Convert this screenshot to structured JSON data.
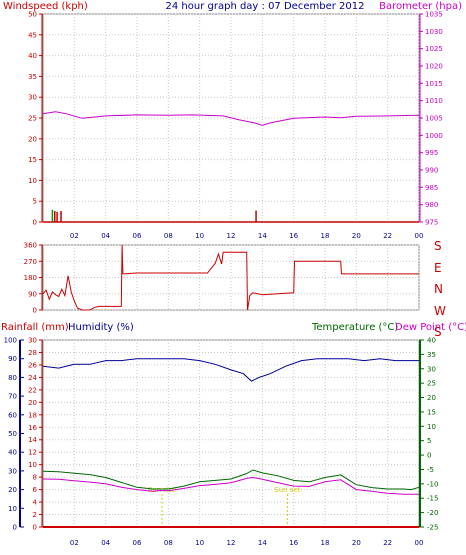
{
  "header": {
    "left_label": "Windspeed (kph)",
    "title": "24 hour graph day : 07 December 2012",
    "right_label": "Barometer (hpa)"
  },
  "compass": [
    "S",
    "E",
    "N",
    "W",
    "S"
  ],
  "lower_header": {
    "rainfall": "Rainfall (mm)",
    "humidity": "Humidity (%)",
    "temperature": "Temperature (°C)",
    "dewpoint": "Dew Point (°C)"
  },
  "annotations": {
    "sunrise": "Sun rise",
    "sunset": "Sun set"
  },
  "colors": {
    "wind": "#cc0000",
    "baro": "#cc00cc",
    "title": "#000099",
    "humidity": "#000099",
    "temp": "#006600",
    "dew": "#cc00cc",
    "rain": "#cc0000",
    "sun": "#cccc00",
    "grid": "#c8c8c8"
  },
  "chart_data": [
    {
      "type": "line",
      "title": "24 hour graph day : 07 December 2012",
      "x_ticks": [
        "02",
        "04",
        "06",
        "08",
        "10",
        "12",
        "14",
        "16",
        "18",
        "20",
        "22",
        "00"
      ],
      "xlim": [
        0,
        24
      ],
      "y_left": {
        "label": "Windspeed (kph)",
        "lim": [
          0,
          50
        ],
        "ticks": [
          0,
          5,
          10,
          15,
          20,
          25,
          30,
          35,
          40,
          45,
          50
        ]
      },
      "y_right": {
        "label": "Barometer (hpa)",
        "lim": [
          975,
          1035
        ],
        "ticks": [
          975,
          980,
          985,
          990,
          995,
          1000,
          1005,
          1010,
          1015,
          1020,
          1025,
          1030,
          1035
        ]
      },
      "series": [
        {
          "name": "Barometer (hpa)",
          "axis": "right",
          "x": [
            0,
            0.8,
            1.5,
            2.5,
            4,
            6,
            8,
            9.5,
            11.5,
            12.5,
            13.5,
            14,
            14.5,
            16,
            18,
            19,
            20,
            22,
            24
          ],
          "values": [
            1006.2,
            1006.8,
            1006.2,
            1004.9,
            1005.6,
            1005.9,
            1005.8,
            1005.9,
            1005.6,
            1004.5,
            1003.6,
            1002.9,
            1003.6,
            1004.9,
            1005.3,
            1005.1,
            1005.5,
            1005.6,
            1005.8
          ]
        },
        {
          "name": "Windspeed (kph)",
          "axis": "left",
          "x": [
            0.6,
            0.75,
            0.9,
            1.15,
            13.6
          ],
          "values": [
            1.5,
            1.2,
            1.0,
            1.2,
            1.3
          ]
        }
      ]
    },
    {
      "type": "line",
      "x_ticks": [],
      "xlim": [
        0,
        24
      ],
      "ylim": [
        0,
        360
      ],
      "y_ticks": [
        0,
        90,
        180,
        270,
        360
      ],
      "series": [
        {
          "x": [
            0,
            0.2,
            0.4,
            0.6,
            0.8,
            1.0,
            1.2,
            1.4,
            1.6,
            1.8,
            2.0,
            2.2,
            2.5,
            3.0,
            3.3,
            3.6,
            4.0,
            4.5,
            5.0,
            5.05,
            5.1,
            6.0,
            8.0,
            10.0,
            10.5,
            11.0,
            11.2,
            11.4,
            11.5,
            12.0,
            12.5,
            13.0,
            13.05,
            13.2,
            13.4,
            14.0,
            15.0,
            16.0,
            16.05,
            18.0,
            19.0,
            19.05,
            20.0,
            24.0
          ],
          "values": [
            90,
            110,
            60,
            100,
            85,
            75,
            115,
            80,
            190,
            100,
            50,
            10,
            0,
            0,
            15,
            20,
            20,
            20,
            20,
            360,
            200,
            205,
            205,
            205,
            205,
            260,
            310,
            255,
            320,
            320,
            320,
            320,
            0,
            80,
            95,
            85,
            90,
            95,
            270,
            270,
            270,
            200,
            200,
            200
          ]
        }
      ]
    },
    {
      "type": "line",
      "x_ticks": [
        "02",
        "04",
        "06",
        "08",
        "10",
        "12",
        "14",
        "16",
        "18",
        "20",
        "22",
        "00"
      ],
      "xlim": [
        0,
        24
      ],
      "y_humidity": {
        "label": "Humidity (%)",
        "lim": [
          0,
          100
        ],
        "ticks": [
          0,
          10,
          20,
          30,
          40,
          50,
          60,
          70,
          80,
          90,
          100
        ]
      },
      "y_rain": {
        "label": "Rainfall (mm)",
        "lim": [
          0,
          30
        ],
        "ticks": [
          0,
          2,
          4,
          6,
          8,
          10,
          12,
          14,
          16,
          18,
          20,
          22,
          24,
          26,
          28,
          30
        ]
      },
      "y_temp": {
        "label": "Temperature (°C)",
        "lim": [
          -25,
          40
        ],
        "ticks": [
          -25,
          -20,
          -15,
          -10,
          -5,
          0,
          5,
          10,
          15,
          20,
          25,
          30,
          35,
          40
        ]
      },
      "series": [
        {
          "name": "Humidity (%)",
          "axis": "humidity",
          "x": [
            0,
            1,
            2,
            3,
            4,
            5,
            6,
            7,
            8,
            9,
            10,
            11,
            12,
            12.8,
            13.3,
            13.8,
            14.5,
            15.5,
            16.5,
            17.5,
            18.5,
            19.5,
            20.5,
            21.5,
            22.5,
            23.5,
            24
          ],
          "values": [
            86,
            85,
            87,
            87,
            89,
            89,
            90,
            90,
            90,
            90,
            89,
            87,
            84,
            82,
            78,
            80,
            82,
            86,
            89,
            90,
            90,
            90,
            89,
            90,
            89,
            89,
            89
          ]
        },
        {
          "name": "Temperature (°C)",
          "axis": "temp",
          "x": [
            0,
            1,
            2,
            3,
            4,
            5,
            6,
            7,
            7.5,
            8,
            9,
            10,
            11,
            12,
            13,
            13.4,
            14,
            15,
            16,
            17,
            18,
            19,
            20,
            21,
            22,
            23,
            23.5,
            24
          ],
          "values": [
            -5.6,
            -5.8,
            -6.3,
            -6.8,
            -7.8,
            -9.5,
            -11.2,
            -11.8,
            -11.8,
            -11.8,
            -10.8,
            -9.3,
            -8.8,
            -8.3,
            -6.4,
            -5.2,
            -6.2,
            -7.2,
            -8.8,
            -9.3,
            -7.8,
            -6.9,
            -10.3,
            -11.3,
            -11.8,
            -11.8,
            -12.0,
            -11.2
          ]
        },
        {
          "name": "Dew Point (°C)",
          "axis": "temp",
          "x": [
            0,
            1,
            2,
            3,
            4,
            5,
            6,
            7,
            7.5,
            8,
            9,
            10,
            11,
            12,
            13,
            13.4,
            14,
            15,
            16,
            17,
            18,
            19,
            20,
            21,
            22,
            23,
            23.5,
            24
          ],
          "values": [
            -8.3,
            -8.4,
            -8.9,
            -9.4,
            -10.0,
            -11.2,
            -12.0,
            -12.6,
            -12.3,
            -12.4,
            -11.6,
            -10.6,
            -10.2,
            -9.6,
            -8.1,
            -7.8,
            -8.4,
            -9.6,
            -10.8,
            -10.9,
            -9.3,
            -8.6,
            -12.0,
            -12.6,
            -13.3,
            -13.6,
            -13.6,
            -13.6
          ]
        },
        {
          "name": "Rainfall (mm)",
          "axis": "rain",
          "x": [
            0,
            24
          ],
          "values": [
            0,
            0
          ]
        }
      ]
    }
  ]
}
